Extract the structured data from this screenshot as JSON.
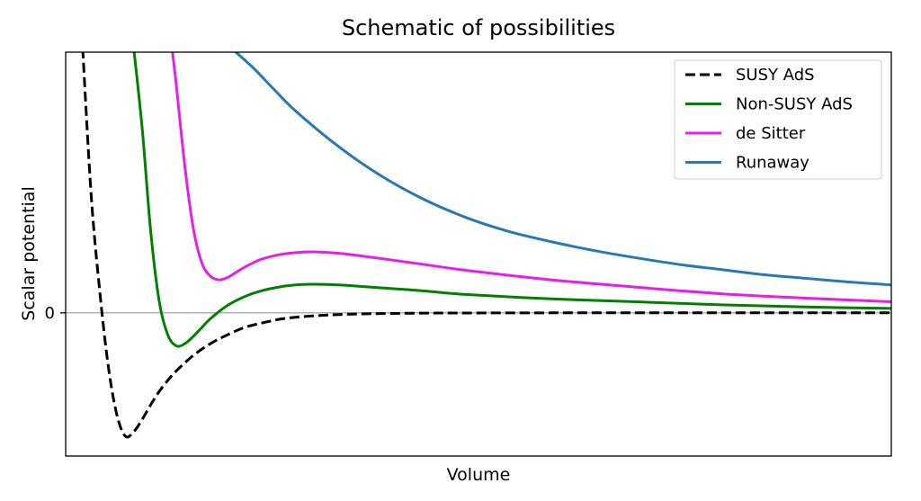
{
  "chart_data": {
    "type": "line",
    "title": "Schematic of possibilities",
    "xlabel": "Volume",
    "ylabel": "Scalar potential",
    "xticks": [],
    "yticks": [
      {
        "value": 0,
        "label": "0"
      }
    ],
    "xlim": [
      0.3,
      10
    ],
    "ylim": [
      -1.95,
      3.55
    ],
    "grid": false,
    "zero_line": true,
    "legend_position": "top-right",
    "series": [
      {
        "name": "SUSY AdS",
        "color": "#000000",
        "dash": true,
        "x": [
          0.5,
          0.6,
          0.7,
          0.8,
          0.9,
          1.0,
          1.1,
          1.2,
          1.3,
          1.4,
          1.5,
          1.6,
          1.8,
          2.0,
          2.2,
          2.4,
          2.6,
          2.8,
          3.0,
          3.3,
          3.6,
          4.0,
          4.5,
          5.0,
          6.0,
          7.0,
          8.0,
          9.0,
          10.0
        ],
        "y": [
          3.6,
          1.6,
          0.3,
          -0.72,
          -1.38,
          -1.68,
          -1.62,
          -1.45,
          -1.25,
          -1.07,
          -0.92,
          -0.79,
          -0.58,
          -0.42,
          -0.3,
          -0.2,
          -0.14,
          -0.09,
          -0.06,
          -0.035,
          -0.02,
          -0.01,
          -0.004,
          -0.002,
          0,
          0,
          0,
          0,
          0
        ]
      },
      {
        "name": "Non-SUSY AdS",
        "color": "#008000",
        "dash": false,
        "x": [
          1.1,
          1.2,
          1.3,
          1.4,
          1.5,
          1.6,
          1.7,
          1.8,
          1.9,
          2.0,
          2.2,
          2.4,
          2.6,
          2.8,
          3.0,
          3.2,
          3.4,
          3.6,
          4.0,
          4.5,
          5.0,
          6.0,
          7.0,
          8.0,
          9.0,
          10.0
        ],
        "y": [
          3.6,
          2.5,
          1.1,
          0.15,
          -0.3,
          -0.45,
          -0.42,
          -0.32,
          -0.2,
          -0.08,
          0.1,
          0.22,
          0.3,
          0.35,
          0.38,
          0.39,
          0.385,
          0.375,
          0.34,
          0.3,
          0.25,
          0.19,
          0.15,
          0.11,
          0.08,
          0.06
        ]
      },
      {
        "name": "de Sitter",
        "color": "#e81ee8",
        "dash": false,
        "x": [
          1.55,
          1.6,
          1.7,
          1.8,
          1.9,
          2.0,
          2.1,
          2.2,
          2.3,
          2.4,
          2.5,
          2.6,
          2.8,
          3.0,
          3.2,
          3.4,
          3.6,
          4.0,
          4.5,
          5.0,
          6.0,
          7.0,
          8.0,
          9.0,
          10.0
        ],
        "y": [
          3.6,
          3.1,
          2.0,
          1.15,
          0.68,
          0.5,
          0.45,
          0.48,
          0.55,
          0.62,
          0.68,
          0.73,
          0.79,
          0.82,
          0.83,
          0.82,
          0.8,
          0.74,
          0.66,
          0.58,
          0.45,
          0.35,
          0.26,
          0.2,
          0.15
        ]
      },
      {
        "name": "Runaway",
        "color": "#2878b5",
        "dash": false,
        "x": [
          2.25,
          2.5,
          2.75,
          3.0,
          3.5,
          4.0,
          4.5,
          5.0,
          5.5,
          6.0,
          6.5,
          7.0,
          7.5,
          8.0,
          8.5,
          9.0,
          9.5,
          10.0
        ],
        "y": [
          3.6,
          3.34,
          3.04,
          2.75,
          2.27,
          1.87,
          1.55,
          1.3,
          1.11,
          0.97,
          0.85,
          0.75,
          0.66,
          0.59,
          0.52,
          0.47,
          0.42,
          0.38
        ]
      }
    ]
  }
}
